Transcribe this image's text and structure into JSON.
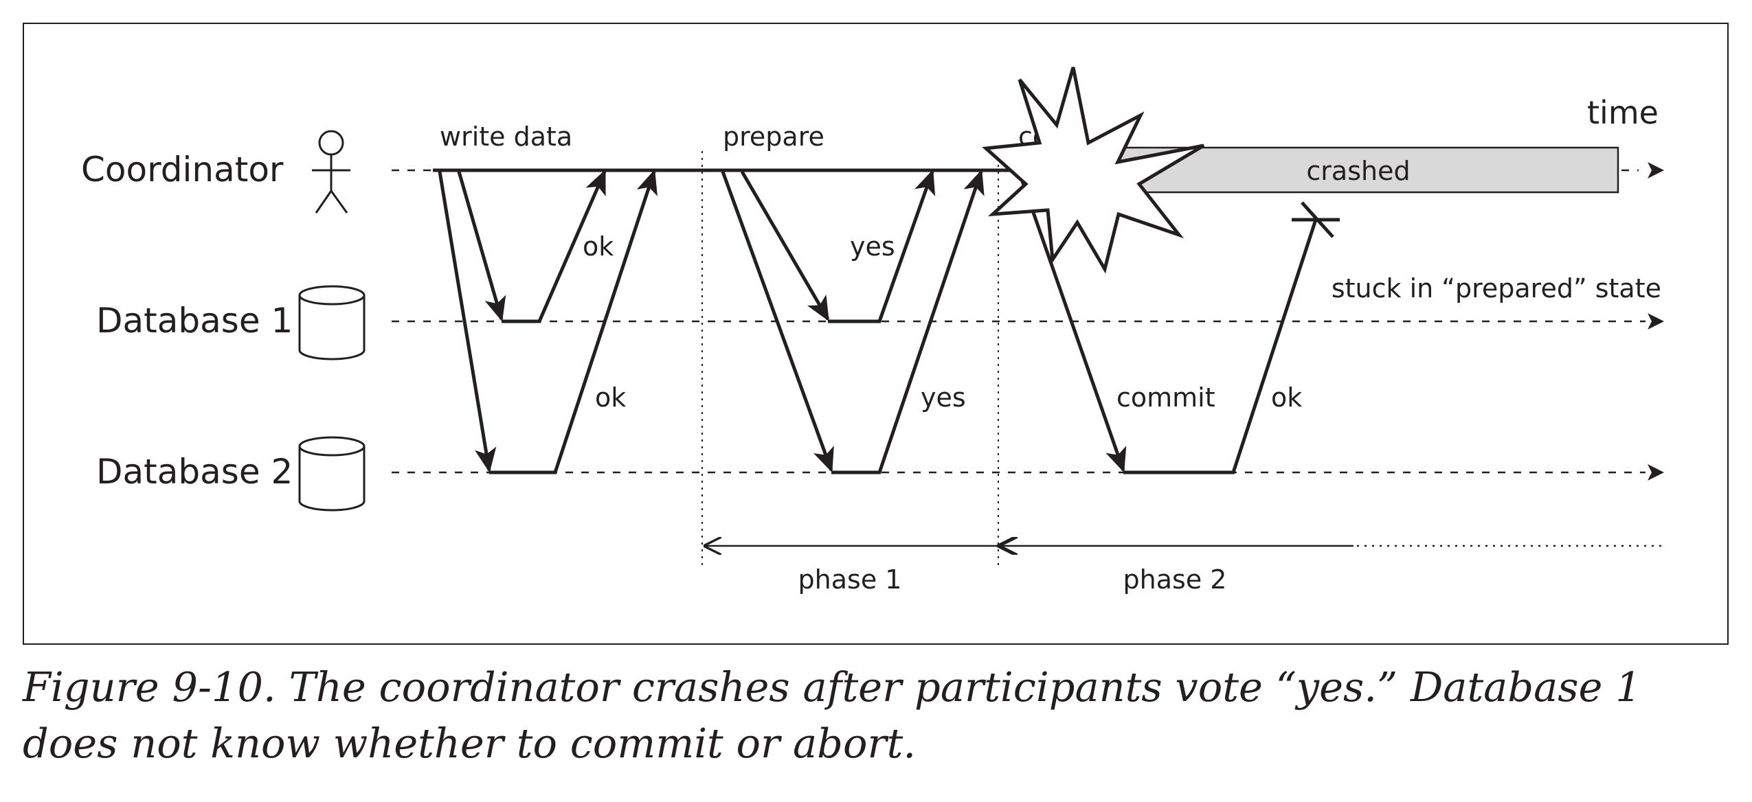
{
  "diagram": {
    "time_label": "time",
    "nodes": {
      "coordinator": "Coordinator",
      "database1": "Database 1",
      "database2": "Database 2"
    },
    "messages": {
      "write_data": "write data",
      "prepare": "prepare",
      "commit_partial": "co",
      "ok_db1": "ok",
      "ok_db2": "ok",
      "yes_db1": "yes",
      "yes_db2": "yes",
      "commit_db2": "commit",
      "ok_db2_lost": "ok"
    },
    "crashed_label": "crashed",
    "stuck_label": "stuck in “prepared” state",
    "phases": {
      "phase1": "phase 1",
      "phase2": "phase 2"
    },
    "icons": {
      "coordinator": "stick-figure-icon",
      "database": "database-cylinder-icon",
      "crash": "explosion-icon"
    },
    "colors": {
      "ink": "#231f20",
      "crashed_fill": "#d9d9d9"
    }
  },
  "caption": "Figure 9-10. The coordinator crashes after participants vote “yes.” Database 1 does not know whether to commit or abort."
}
